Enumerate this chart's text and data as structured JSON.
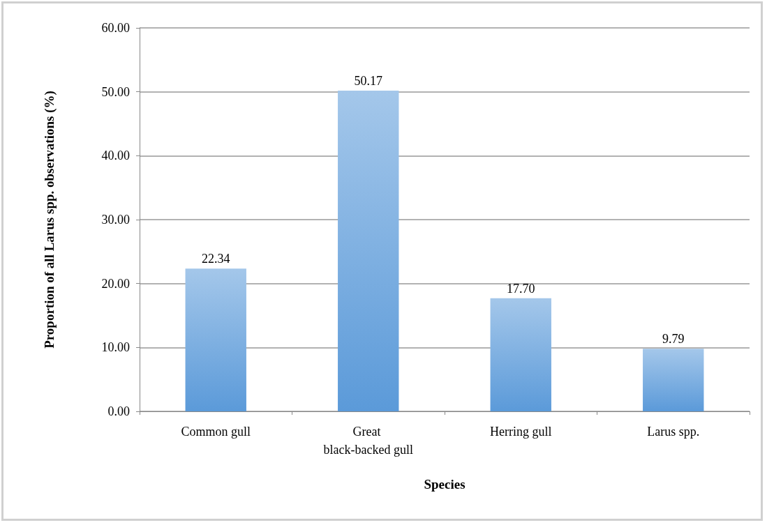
{
  "chart_data": {
    "type": "bar",
    "xlabel": "Species",
    "ylabel": "Proportion of all Larus spp. observations (%)",
    "categories": [
      "Common gull",
      "Great black-backed gull",
      "Herring gull",
      "Larus spp."
    ],
    "values": [
      22.34,
      50.17,
      17.7,
      9.79
    ],
    "value_labels": [
      "22.34",
      "50.17",
      "17.70",
      "9.79"
    ],
    "color": "#5b9ad9",
    "ylim": [
      0,
      60
    ],
    "yticks": [
      {
        "value": 0,
        "label": "0.00"
      },
      {
        "value": 10,
        "label": "10.00"
      },
      {
        "value": 20,
        "label": "20.00"
      },
      {
        "value": 30,
        "label": "30.00"
      },
      {
        "value": 40,
        "label": "40.00"
      },
      {
        "value": 50,
        "label": "50.00"
      },
      {
        "value": 60,
        "label": "60.00"
      }
    ],
    "grid": "y"
  }
}
